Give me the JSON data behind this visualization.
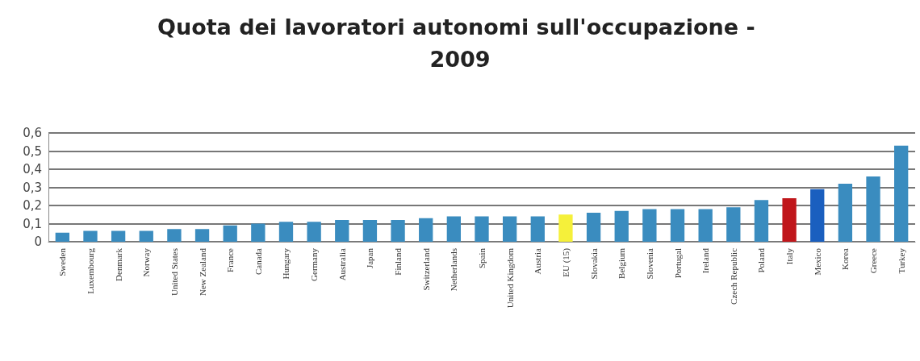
{
  "chart_data": {
    "type": "bar",
    "title": "Quota dei lavoratori autonomi sull'occupazione - 2009",
    "categories": [
      "Sweden",
      "Luxembourg",
      "Denmark",
      "Norway",
      "United States",
      "New Zealand",
      "France",
      "Canada",
      "Hungary",
      "Germany",
      "Australia",
      "Japan",
      "Finland",
      "Switzerland",
      "Netherlands",
      "Spain",
      "United Kingdom",
      "Austria",
      "EU (15)",
      "Slovakia",
      "Belgium",
      "Slovenia",
      "Portugal",
      "Ireland",
      "Czech Republic",
      "Poland",
      "Italy",
      "Mexico",
      "Korea",
      "Greece",
      "Turkey"
    ],
    "values": [
      0.05,
      0.06,
      0.06,
      0.06,
      0.07,
      0.07,
      0.09,
      0.1,
      0.11,
      0.11,
      0.12,
      0.12,
      0.12,
      0.13,
      0.14,
      0.14,
      0.14,
      0.14,
      0.15,
      0.16,
      0.17,
      0.18,
      0.18,
      0.18,
      0.19,
      0.23,
      0.24,
      0.29,
      0.32,
      0.36,
      0.53
    ],
    "colors": [
      "#3a8cbf",
      "#3a8cbf",
      "#3a8cbf",
      "#3a8cbf",
      "#3a8cbf",
      "#3a8cbf",
      "#3a8cbf",
      "#3a8cbf",
      "#3a8cbf",
      "#3a8cbf",
      "#3a8cbf",
      "#3a8cbf",
      "#3a8cbf",
      "#3a8cbf",
      "#3a8cbf",
      "#3a8cbf",
      "#3a8cbf",
      "#3a8cbf",
      "#f5f03a",
      "#3a8cbf",
      "#3a8cbf",
      "#3a8cbf",
      "#3a8cbf",
      "#3a8cbf",
      "#3a8cbf",
      "#3a8cbf",
      "#c0161b",
      "#1a5fbf",
      "#3a8cbf",
      "#3a8cbf",
      "#3a8cbf"
    ],
    "ylim": [
      0,
      0.6
    ],
    "yticks": [
      0,
      {
        "value": 0.1,
        "label": "0,1"
      },
      {
        "value": 0.2,
        "label": "0,2"
      },
      {
        "value": 0.3,
        "label": "0,3"
      },
      {
        "value": 0.4,
        "label": "0,4"
      },
      {
        "value": 0.5,
        "label": "0,5"
      },
      {
        "value": 0.6,
        "label": "0,6"
      }
    ],
    "grid": "y"
  }
}
